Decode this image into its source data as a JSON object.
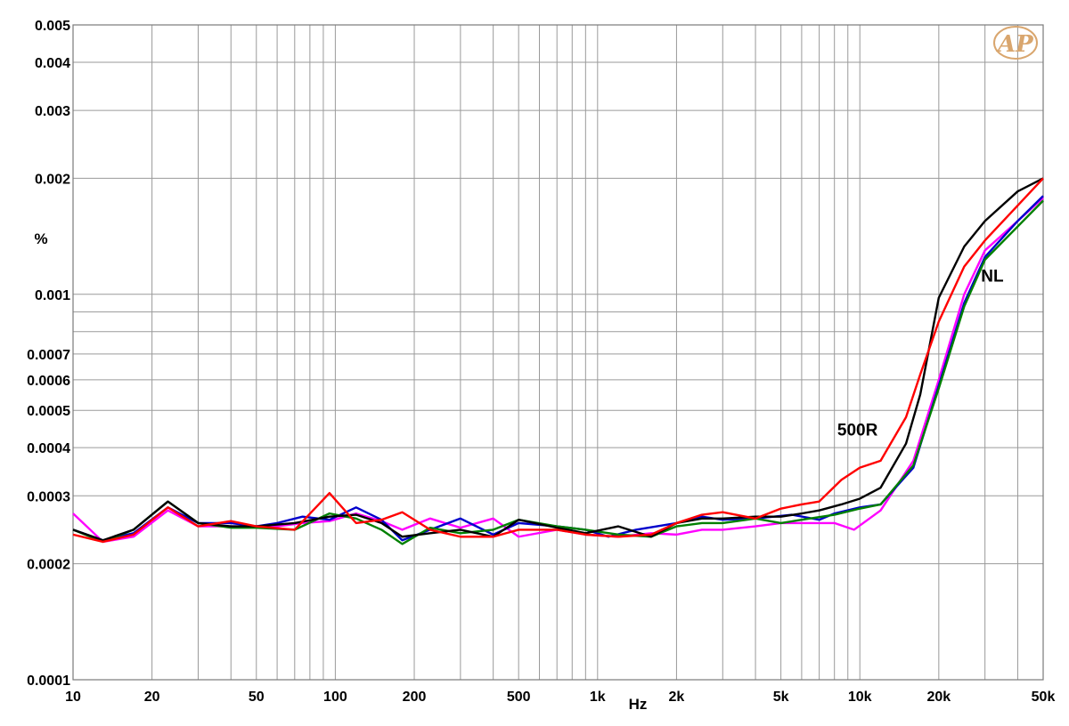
{
  "chart_data": {
    "type": "line",
    "title": "",
    "xlabel": "Hz",
    "ylabel": "%",
    "x_scale": "log",
    "y_scale": "log",
    "xlim": [
      10,
      50000
    ],
    "ylim": [
      0.0001,
      0.005
    ],
    "grid": true,
    "x_ticks": [
      {
        "value": 10,
        "label": "10"
      },
      {
        "value": 20,
        "label": "20"
      },
      {
        "value": 50,
        "label": "50"
      },
      {
        "value": 100,
        "label": "100"
      },
      {
        "value": 200,
        "label": "200"
      },
      {
        "value": 500,
        "label": "500"
      },
      {
        "value": 1000,
        "label": "1k"
      },
      {
        "value": 2000,
        "label": "2k"
      },
      {
        "value": 5000,
        "label": "5k"
      },
      {
        "value": 10000,
        "label": "10k"
      },
      {
        "value": 20000,
        "label": "20k"
      },
      {
        "value": 50000,
        "label": "50k"
      }
    ],
    "y_ticks": [
      {
        "value": 0.0001,
        "label": "0.0001"
      },
      {
        "value": 0.0002,
        "label": "0.0002"
      },
      {
        "value": 0.0003,
        "label": "0.0003"
      },
      {
        "value": 0.0004,
        "label": "0.0004"
      },
      {
        "value": 0.0005,
        "label": "0.0005"
      },
      {
        "value": 0.0006,
        "label": "0.0006"
      },
      {
        "value": 0.0007,
        "label": "0.0007"
      },
      {
        "value": 0.001,
        "label": "0.001"
      },
      {
        "value": 0.002,
        "label": "0.002"
      },
      {
        "value": 0.003,
        "label": "0.003"
      },
      {
        "value": 0.004,
        "label": "0.004"
      },
      {
        "value": 0.005,
        "label": "0.005"
      }
    ],
    "y_gridlines": [
      0.0001,
      0.0002,
      0.0003,
      0.0004,
      0.0005,
      0.0006,
      0.0007,
      0.0008,
      0.0009,
      0.001,
      0.002,
      0.003,
      0.004,
      0.005
    ],
    "series": [
      {
        "color": "#ff00ff",
        "points": [
          [
            10,
            0.00027
          ],
          [
            13,
            0.000228
          ],
          [
            17,
            0.000235
          ],
          [
            23,
            0.000275
          ],
          [
            30,
            0.00025
          ],
          [
            40,
            0.00025
          ],
          [
            50,
            0.00025
          ],
          [
            60,
            0.00025
          ],
          [
            75,
            0.000255
          ],
          [
            95,
            0.000258
          ],
          [
            120,
            0.00027
          ],
          [
            150,
            0.000258
          ],
          [
            180,
            0.000245
          ],
          [
            230,
            0.000262
          ],
          [
            300,
            0.000248
          ],
          [
            400,
            0.000262
          ],
          [
            500,
            0.000235
          ],
          [
            700,
            0.000245
          ],
          [
            900,
            0.000238
          ],
          [
            1200,
            0.000235
          ],
          [
            1600,
            0.00024
          ],
          [
            2000,
            0.000238
          ],
          [
            2500,
            0.000245
          ],
          [
            3000,
            0.000245
          ],
          [
            4000,
            0.00025
          ],
          [
            5000,
            0.000255
          ],
          [
            6000,
            0.000255
          ],
          [
            7000,
            0.000255
          ],
          [
            8000,
            0.000255
          ],
          [
            9500,
            0.000245
          ],
          [
            12000,
            0.000275
          ],
          [
            16000,
            0.00037
          ],
          [
            20000,
            0.0006
          ],
          [
            25000,
            0.001
          ],
          [
            30000,
            0.0013
          ],
          [
            40000,
            0.00155
          ],
          [
            50000,
            0.00178
          ]
        ]
      },
      {
        "color": "#0000cc",
        "points": [
          [
            10,
            0.000245
          ],
          [
            13,
            0.00023
          ],
          [
            17,
            0.00024
          ],
          [
            23,
            0.00028
          ],
          [
            30,
            0.000255
          ],
          [
            40,
            0.000255
          ],
          [
            50,
            0.00025
          ],
          [
            60,
            0.000255
          ],
          [
            75,
            0.000265
          ],
          [
            95,
            0.00026
          ],
          [
            120,
            0.00028
          ],
          [
            150,
            0.00026
          ],
          [
            180,
            0.00023
          ],
          [
            230,
            0.000245
          ],
          [
            300,
            0.000262
          ],
          [
            400,
            0.000238
          ],
          [
            500,
            0.000255
          ],
          [
            700,
            0.00025
          ],
          [
            900,
            0.000245
          ],
          [
            1100,
            0.000235
          ],
          [
            1400,
            0.000245
          ],
          [
            2000,
            0.000255
          ],
          [
            2500,
            0.000265
          ],
          [
            3000,
            0.00026
          ],
          [
            4000,
            0.000262
          ],
          [
            5500,
            0.000268
          ],
          [
            7000,
            0.00026
          ],
          [
            8000,
            0.00027
          ],
          [
            10000,
            0.00028
          ],
          [
            12000,
            0.000285
          ],
          [
            16000,
            0.000355
          ],
          [
            20000,
            0.00058
          ],
          [
            25000,
            0.00095
          ],
          [
            30000,
            0.00125
          ],
          [
            40000,
            0.00155
          ],
          [
            50000,
            0.0018
          ]
        ]
      },
      {
        "color": "#008000",
        "points": [
          [
            10,
            0.000245
          ],
          [
            13,
            0.000228
          ],
          [
            17,
            0.000245
          ],
          [
            23,
            0.00029
          ],
          [
            30,
            0.000255
          ],
          [
            40,
            0.000248
          ],
          [
            50,
            0.000248
          ],
          [
            70,
            0.000245
          ],
          [
            95,
            0.00027
          ],
          [
            120,
            0.000262
          ],
          [
            150,
            0.000245
          ],
          [
            180,
            0.000225
          ],
          [
            230,
            0.000248
          ],
          [
            300,
            0.00024
          ],
          [
            400,
            0.000245
          ],
          [
            500,
            0.00026
          ],
          [
            700,
            0.00025
          ],
          [
            900,
            0.000245
          ],
          [
            1200,
            0.000238
          ],
          [
            1600,
            0.000235
          ],
          [
            2000,
            0.00025
          ],
          [
            2500,
            0.000255
          ],
          [
            3000,
            0.000255
          ],
          [
            4000,
            0.000262
          ],
          [
            5000,
            0.000255
          ],
          [
            6000,
            0.00026
          ],
          [
            8000,
            0.000268
          ],
          [
            10000,
            0.000278
          ],
          [
            12000,
            0.000285
          ],
          [
            16000,
            0.00036
          ],
          [
            20000,
            0.00057
          ],
          [
            25000,
            0.00093
          ],
          [
            30000,
            0.00123
          ],
          [
            40000,
            0.0015
          ],
          [
            50000,
            0.00175
          ]
        ]
      },
      {
        "color": "#000000",
        "points": [
          [
            10,
            0.000245
          ],
          [
            13,
            0.00023
          ],
          [
            17,
            0.000245
          ],
          [
            23,
            0.00029
          ],
          [
            30,
            0.000255
          ],
          [
            40,
            0.00025
          ],
          [
            50,
            0.00025
          ],
          [
            70,
            0.000255
          ],
          [
            95,
            0.000265
          ],
          [
            120,
            0.000268
          ],
          [
            150,
            0.000255
          ],
          [
            180,
            0.000235
          ],
          [
            230,
            0.00024
          ],
          [
            300,
            0.000245
          ],
          [
            400,
            0.000235
          ],
          [
            500,
            0.00026
          ],
          [
            700,
            0.000248
          ],
          [
            900,
            0.00024
          ],
          [
            1200,
            0.00025
          ],
          [
            1600,
            0.000235
          ],
          [
            2000,
            0.000255
          ],
          [
            2500,
            0.000262
          ],
          [
            3000,
            0.000262
          ],
          [
            4000,
            0.000265
          ],
          [
            5000,
            0.000265
          ],
          [
            6000,
            0.00027
          ],
          [
            7000,
            0.000275
          ],
          [
            8500,
            0.000285
          ],
          [
            10000,
            0.000295
          ],
          [
            12000,
            0.000315
          ],
          [
            15000,
            0.00041
          ],
          [
            17000,
            0.00055
          ],
          [
            20000,
            0.00098
          ],
          [
            25000,
            0.00133
          ],
          [
            30000,
            0.00155
          ],
          [
            40000,
            0.00185
          ],
          [
            50000,
            0.002
          ]
        ]
      },
      {
        "color": "#ff0000",
        "points": [
          [
            10,
            0.000238
          ],
          [
            13,
            0.000228
          ],
          [
            17,
            0.000238
          ],
          [
            23,
            0.00028
          ],
          [
            30,
            0.00025
          ],
          [
            40,
            0.000258
          ],
          [
            50,
            0.00025
          ],
          [
            70,
            0.000245
          ],
          [
            95,
            0.000305
          ],
          [
            120,
            0.000255
          ],
          [
            150,
            0.00026
          ],
          [
            180,
            0.000272
          ],
          [
            230,
            0.000245
          ],
          [
            300,
            0.000235
          ],
          [
            400,
            0.000235
          ],
          [
            500,
            0.000245
          ],
          [
            700,
            0.000245
          ],
          [
            900,
            0.000238
          ],
          [
            1200,
            0.000235
          ],
          [
            1600,
            0.000238
          ],
          [
            2000,
            0.000255
          ],
          [
            2500,
            0.000268
          ],
          [
            3000,
            0.000272
          ],
          [
            4000,
            0.000262
          ],
          [
            5000,
            0.000278
          ],
          [
            6000,
            0.000285
          ],
          [
            7000,
            0.00029
          ],
          [
            8500,
            0.00033
          ],
          [
            10000,
            0.000355
          ],
          [
            12000,
            0.00037
          ],
          [
            15000,
            0.00048
          ],
          [
            17000,
            0.00062
          ],
          [
            20000,
            0.00085
          ],
          [
            25000,
            0.00118
          ],
          [
            30000,
            0.00138
          ],
          [
            40000,
            0.0017
          ],
          [
            50000,
            0.002
          ]
        ]
      }
    ],
    "annotations": [
      {
        "text": "NL",
        "x": 32000,
        "y": 0.00108
      },
      {
        "text": "500R",
        "x": 9800,
        "y": 0.00043
      }
    ]
  },
  "logo": {
    "text": "AP",
    "color": "#d9a66e"
  }
}
